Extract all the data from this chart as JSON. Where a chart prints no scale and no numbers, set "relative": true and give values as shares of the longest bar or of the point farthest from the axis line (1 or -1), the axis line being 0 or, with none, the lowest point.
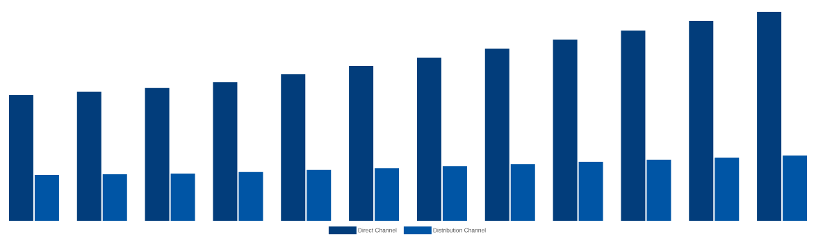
{
  "chart_data": {
    "type": "bar",
    "relative": true,
    "categories": [
      null,
      null,
      null,
      null,
      null,
      null,
      null,
      null,
      null,
      null,
      null,
      null
    ],
    "series": [
      {
        "name": "Direct Channel",
        "color": "#023d7b",
        "values": [
          0.601,
          0.618,
          0.635,
          0.664,
          0.701,
          0.741,
          0.781,
          0.824,
          0.867,
          0.91,
          0.957,
          1
        ]
      },
      {
        "name": "Distribution Channel",
        "color": "#0055a5",
        "values": [
          0.219,
          0.223,
          0.226,
          0.233,
          0.243,
          0.252,
          0.262,
          0.272,
          0.282,
          0.292,
          0.302,
          0.312
        ]
      }
    ],
    "legend": "bottom"
  }
}
